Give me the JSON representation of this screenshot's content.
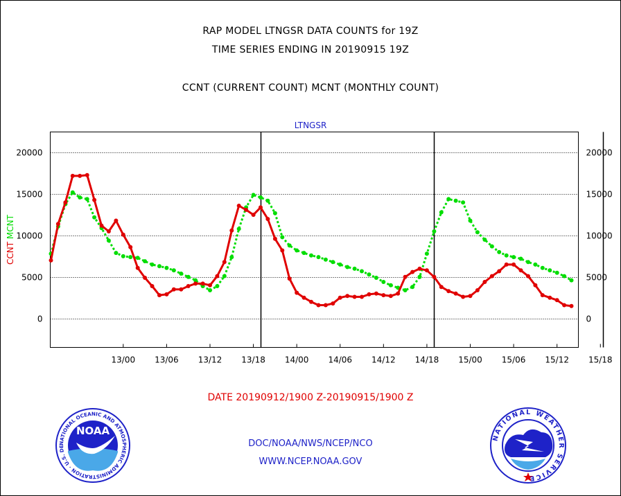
{
  "header": {
    "title_line1": "RAP MODEL LTNGSR DATA COUNTS for 19Z",
    "title_line2": "TIME SERIES ENDING IN 20190915 19Z",
    "subtitle": "CCNT (CURRENT COUNT) MCNT (MONTHLY COUNT)"
  },
  "footer": {
    "date_range": "DATE 20190912/1900 Z-20190915/1900 Z",
    "org_path": "DOC/NOAA/NWS/NCEP/NCO",
    "website": "WWW.NCEP.NOAA.GOV"
  },
  "logos": {
    "noaa_label": "NOAA",
    "nws_ring_text": "NATIONAL WEATHER SERVICE",
    "noaa_ring_text": "NATIONAL OCEANIC AND ATMOSPHERIC ADMINISTRATION · U.S. DEPARTMENT OF COMMERCE"
  },
  "colors": {
    "ccnt": "#e00000",
    "mcnt": "#00dd00",
    "axis_text": "#000000",
    "plot_title": "#1e22c8"
  },
  "chart_data": {
    "type": "line",
    "title": "LTNGSR",
    "ylabel_parts": [
      {
        "text": "CCNT",
        "color": "#e00000"
      },
      {
        "text": "MCNT",
        "color": "#00dd00"
      }
    ],
    "ylim": [
      -3500,
      22500
    ],
    "yticks": [
      0,
      5000,
      10000,
      15000,
      20000
    ],
    "x_start_hour": 19,
    "x_end_hour": 91,
    "xticks": [
      {
        "hour": 29,
        "label": "13/00"
      },
      {
        "hour": 35,
        "label": "13/06"
      },
      {
        "hour": 41,
        "label": "13/12"
      },
      {
        "hour": 47,
        "label": "13/18"
      },
      {
        "hour": 53,
        "label": "14/00"
      },
      {
        "hour": 59,
        "label": "14/06"
      },
      {
        "hour": 65,
        "label": "14/12"
      },
      {
        "hour": 71,
        "label": "14/18"
      },
      {
        "hour": 77,
        "label": "15/00"
      },
      {
        "hour": 83,
        "label": "15/06"
      },
      {
        "hour": 89,
        "label": "15/12"
      },
      {
        "hour": 95,
        "label": "15/18"
      }
    ],
    "day_markers_hour": [
      48,
      72,
      95.4
    ],
    "x_hours": [
      19,
      20,
      21,
      22,
      23,
      24,
      25,
      26,
      27,
      28,
      29,
      30,
      31,
      32,
      33,
      34,
      35,
      36,
      37,
      38,
      39,
      40,
      41,
      42,
      43,
      44,
      45,
      46,
      47,
      48,
      49,
      50,
      51,
      52,
      53,
      54,
      55,
      56,
      57,
      58,
      59,
      60,
      61,
      62,
      63,
      64,
      65,
      66,
      67,
      68,
      69,
      70,
      71,
      72,
      73,
      74,
      75,
      76,
      77,
      78,
      79,
      80,
      81,
      82,
      83,
      84,
      85,
      86,
      87,
      88,
      89,
      90,
      91
    ],
    "series": [
      {
        "name": "CCNT",
        "color": "#e00000",
        "values": [
          7000,
          11400,
          14000,
          17200,
          17200,
          17300,
          14300,
          11200,
          10500,
          11800,
          10100,
          8600,
          6100,
          4900,
          3900,
          2800,
          2900,
          3500,
          3500,
          3900,
          4200,
          4200,
          4000,
          5100,
          6800,
          10600,
          13600,
          13100,
          12500,
          13400,
          12000,
          9600,
          8200,
          4800,
          3100,
          2500,
          2000,
          1600,
          1600,
          1800,
          2500,
          2700,
          2600,
          2600,
          2900,
          3000,
          2800,
          2700,
          3000,
          5000,
          5600,
          6000,
          5800,
          5000,
          3800,
          3300,
          3000,
          2600,
          2700,
          3400,
          4400,
          5100,
          5700,
          6500,
          6500,
          5800,
          5100,
          4000,
          2800,
          2500,
          2200,
          1600,
          1500
        ]
      },
      {
        "name": "MCNT",
        "color": "#00dd00",
        "values": [
          7800,
          11100,
          13800,
          15200,
          14600,
          14400,
          12200,
          10900,
          9400,
          7900,
          7500,
          7400,
          7300,
          6900,
          6500,
          6300,
          6100,
          5800,
          5400,
          5000,
          4600,
          3900,
          3400,
          3900,
          5100,
          7400,
          10800,
          13400,
          14900,
          14600,
          14200,
          12700,
          9800,
          8800,
          8200,
          7900,
          7600,
          7400,
          7100,
          6800,
          6500,
          6200,
          6000,
          5700,
          5300,
          4900,
          4400,
          4000,
          3700,
          3400,
          3800,
          5000,
          7800,
          10500,
          12800,
          14400,
          14200,
          14000,
          11800,
          10400,
          9500,
          8700,
          8000,
          7600,
          7400,
          7200,
          6800,
          6500,
          6100,
          5800,
          5500,
          5100,
          4600
        ]
      }
    ]
  }
}
